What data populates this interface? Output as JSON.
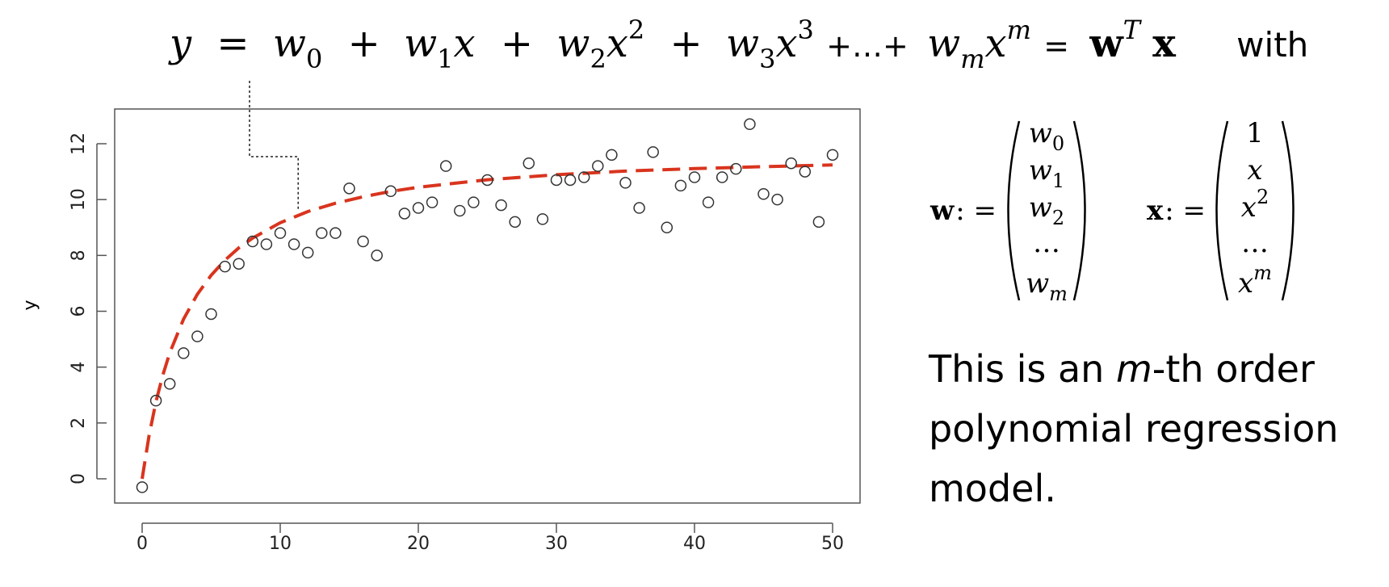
{
  "formula": {
    "y": "y",
    "eq": "=",
    "w": "w",
    "x": "x",
    "sub0": "0",
    "sub1": "1",
    "sub2": "2",
    "sub3": "3",
    "subm": "m",
    "sup2": "2",
    "sup3": "3",
    "supm": "m",
    "plus": "+",
    "dots_plus": "+…+",
    "bold_w": "w",
    "sup_T": "T",
    "bold_x": "x",
    "with": "with"
  },
  "vectors": {
    "w_label_bold": "w",
    "x_label_bold": "x",
    "assign": ": =",
    "w_entries": [
      {
        "base": "w",
        "sub": "0"
      },
      {
        "base": "w",
        "sub": "1"
      },
      {
        "base": "w",
        "sub": "2"
      },
      {
        "base": "…",
        "sub": ""
      },
      {
        "base": "w",
        "sub": "m"
      }
    ],
    "x_entries": [
      {
        "base": "1",
        "sup": ""
      },
      {
        "base": "x",
        "sup": ""
      },
      {
        "base": "x",
        "sup": "2"
      },
      {
        "base": "…",
        "sup": ""
      },
      {
        "base": "x",
        "sup": "m"
      }
    ]
  },
  "description": {
    "prefix": "This is an ",
    "m": "m",
    "suffix": "-th order",
    "line2": "polynomial regression",
    "line3": "model."
  },
  "chart_data": {
    "type": "scatter",
    "ylabel": "y",
    "xlabel": "",
    "xlim": [
      0,
      50
    ],
    "ylim": [
      0,
      12
    ],
    "xticks": [
      0,
      10,
      20,
      30,
      40,
      50
    ],
    "yticks": [
      0,
      2,
      4,
      6,
      8,
      10,
      12
    ],
    "grid": false,
    "points": {
      "x": [
        0,
        1,
        2,
        3,
        4,
        5,
        6,
        7,
        8,
        9,
        10,
        11,
        12,
        13,
        14,
        15,
        16,
        17,
        18,
        19,
        20,
        21,
        22,
        23,
        24,
        25,
        26,
        27,
        28,
        29,
        30,
        31,
        32,
        33,
        34,
        35,
        36,
        37,
        38,
        39,
        40,
        41,
        42,
        43,
        44,
        45,
        46,
        47,
        48,
        49,
        50
      ],
      "y": [
        -0.3,
        2.8,
        3.4,
        4.5,
        5.1,
        5.9,
        7.6,
        7.7,
        8.5,
        8.4,
        8.8,
        8.4,
        8.1,
        8.8,
        8.8,
        10.4,
        8.5,
        8.0,
        10.3,
        9.5,
        9.7,
        9.9,
        11.2,
        9.6,
        9.9,
        10.7,
        9.8,
        9.2,
        11.3,
        9.3,
        10.7,
        10.7,
        10.8,
        11.2,
        11.6,
        10.6,
        9.7,
        11.7,
        9.0,
        10.5,
        10.8,
        9.9,
        10.8,
        11.1,
        12.7,
        10.2,
        10.0,
        11.3,
        11.0,
        9.2,
        11.6
      ]
    },
    "fit_curve": {
      "style": "dashed",
      "color": "#d9341e",
      "x": [
        0,
        0.5,
        1,
        1.5,
        2,
        3,
        4,
        5,
        6,
        7,
        8,
        10,
        12,
        14,
        16,
        18,
        20,
        25,
        30,
        35,
        40,
        45,
        50
      ],
      "y": [
        0,
        1.55,
        2.76,
        3.72,
        4.51,
        5.72,
        6.61,
        7.29,
        7.83,
        8.27,
        8.62,
        9.17,
        9.57,
        9.87,
        10.1,
        10.29,
        10.44,
        10.71,
        10.89,
        11.02,
        11.11,
        11.18,
        11.24
      ]
    },
    "marker_color": "#333333",
    "annotation": {
      "from_formula_to_curve": true,
      "target_x": 11.3
    }
  }
}
